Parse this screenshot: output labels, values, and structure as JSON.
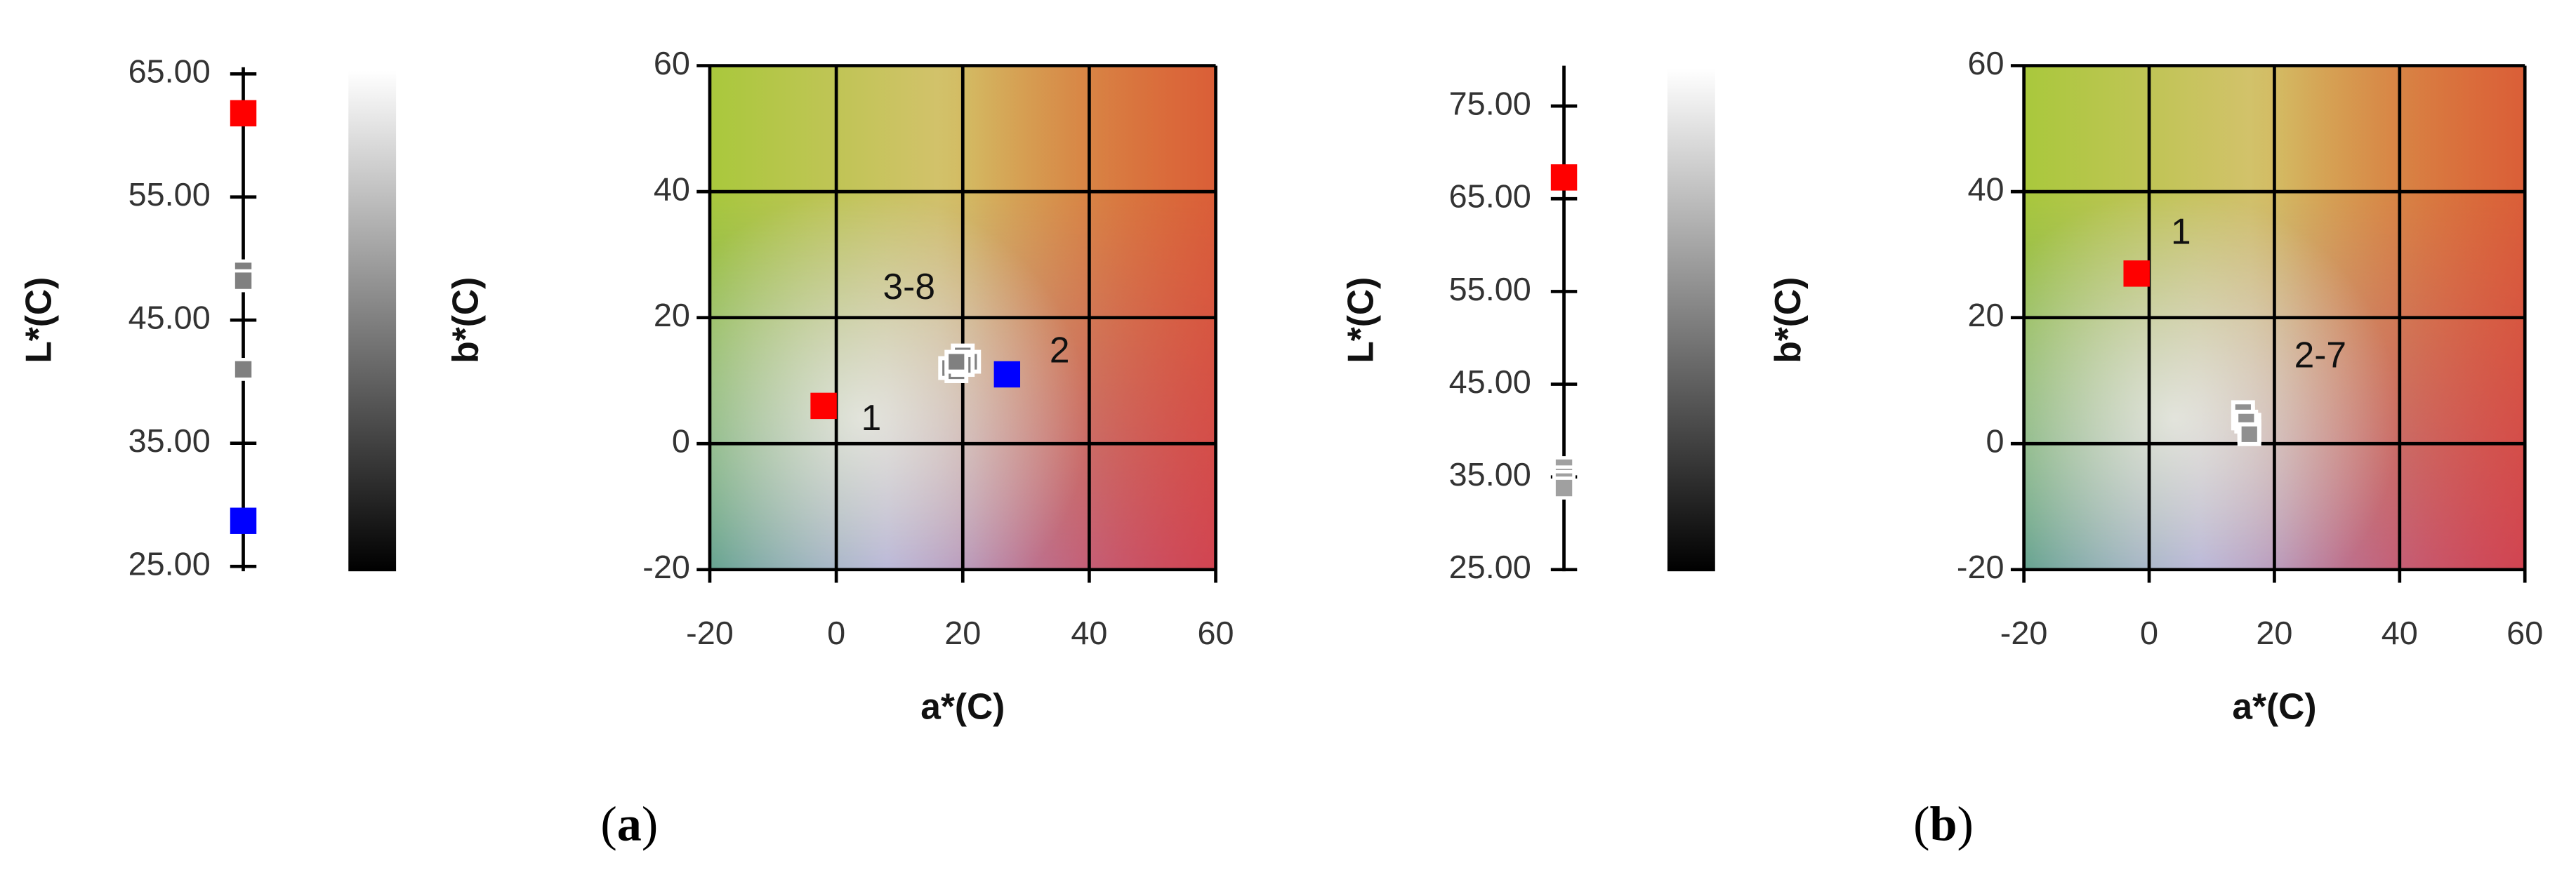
{
  "chart_data": [
    {
      "type": "strip",
      "ylabel": "L*(C)",
      "ylim": [
        25,
        65
      ],
      "yticks": [
        {
          "value": 25,
          "label": "25.00"
        },
        {
          "value": 35,
          "label": "35.00"
        },
        {
          "value": 45,
          "label": "45.00"
        },
        {
          "value": 55,
          "label": "55.00"
        },
        {
          "value": 65,
          "label": "65.00"
        }
      ],
      "values": [
        61.8,
        49,
        48.2,
        41,
        28.7
      ],
      "colors": [
        "#ff0000",
        "#808080",
        "#808080",
        "#808080",
        "#0000ff"
      ]
    },
    {
      "type": "scatter",
      "xlabel": "a*(C)",
      "ylabel": "b*(C)",
      "xlim": [
        -20,
        60
      ],
      "ylim": [
        -20,
        60
      ],
      "xticks": [
        -20,
        0,
        20,
        40,
        60
      ],
      "yticks": [
        -20,
        0,
        20,
        40,
        60
      ],
      "grid": true,
      "series": [
        {
          "name": "1",
          "color": "#ff0000",
          "x": [
            -2
          ],
          "y": [
            6
          ]
        },
        {
          "name": "2",
          "color": "#0000ff",
          "x": [
            27
          ],
          "y": [
            11
          ]
        },
        {
          "name": "3-8",
          "color": "#808080",
          "x": [
            18,
            19,
            20,
            21,
            20,
            19
          ],
          "y": [
            12,
            11.5,
            14,
            13,
            12.5,
            13
          ]
        }
      ]
    },
    {
      "type": "strip",
      "ylabel": "L*(C)",
      "ylim": [
        25,
        79
      ],
      "yticks": [
        {
          "value": 25,
          "label": "25.00"
        },
        {
          "value": 35,
          "label": "35.00"
        },
        {
          "value": 45,
          "label": "45.00"
        },
        {
          "value": 55,
          "label": "55.00"
        },
        {
          "value": 65,
          "label": "65.00"
        },
        {
          "value": 75,
          "label": "75.00"
        }
      ],
      "values": [
        67.3,
        36,
        35,
        34.5,
        33.8
      ],
      "colors": [
        "#ff0000",
        "#a0a0a0",
        "#a0a0a0",
        "#a0a0a0",
        "#a0a0a0"
      ]
    },
    {
      "type": "scatter",
      "xlabel": "a*(C)",
      "ylabel": "b*(C)",
      "xlim": [
        -20,
        60
      ],
      "ylim": [
        -20,
        60
      ],
      "xticks": [
        -20,
        0,
        20,
        40,
        60
      ],
      "yticks": [
        -20,
        0,
        20,
        40,
        60
      ],
      "grid": true,
      "series": [
        {
          "name": "1",
          "color": "#ff0000",
          "x": [
            -2
          ],
          "y": [
            27
          ]
        },
        {
          "name": "2-7",
          "color": "#909090",
          "x": [
            15,
            16,
            15,
            16,
            15.5,
            16
          ],
          "y": [
            4,
            3,
            5,
            2,
            3.5,
            1.5
          ]
        }
      ]
    }
  ],
  "captions": [
    [
      "(",
      "a",
      ")"
    ],
    [
      "(",
      "b",
      ")"
    ]
  ]
}
